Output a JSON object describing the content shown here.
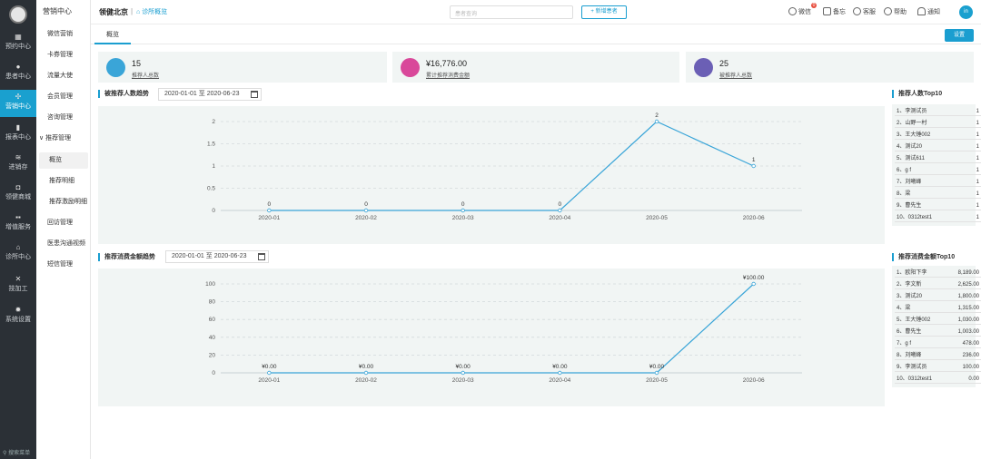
{
  "sidebar": {
    "items": [
      {
        "label": "预约中心",
        "icon": "calendar-icon"
      },
      {
        "label": "患者中心",
        "icon": "user-icon"
      },
      {
        "label": "营销中心",
        "icon": "marketing-icon"
      },
      {
        "label": "报表中心",
        "icon": "bar-chart-icon"
      },
      {
        "label": "进销存",
        "icon": "layers-icon"
      },
      {
        "label": "领健商城",
        "icon": "shop-icon"
      },
      {
        "label": "增值服务",
        "icon": "grid-icon"
      },
      {
        "label": "诊所中心",
        "icon": "clinic-icon"
      },
      {
        "label": "技加工",
        "icon": "tools-icon"
      },
      {
        "label": "系统设置",
        "icon": "gear-icon"
      }
    ],
    "search_label": "搜索菜单"
  },
  "subnav": {
    "header": "营销中心",
    "items": [
      "微信营销",
      "卡券管理",
      "流量大使",
      "会员管理",
      "咨询管理",
      "推荐管理",
      "概览",
      "推荐明细",
      "推荐激励明细",
      "回访管理",
      "医患沟通视频",
      "短信管理"
    ]
  },
  "topbar": {
    "brand": "领健北京",
    "sep": "|",
    "clinic_link": "诊所概览",
    "search_placeholder": "患者查询",
    "new_patient": "新增患者",
    "wechat": "微信",
    "wechat_badge": "0",
    "memo": "备忘",
    "service": "客服",
    "help": "帮助",
    "notify": "通知",
    "avatar": "in"
  },
  "tabs": {
    "overview": "概览",
    "settings": "设置"
  },
  "cards": [
    {
      "value": "15",
      "label": "推荐人总数",
      "color": "#3aa5d8"
    },
    {
      "value": "¥16,776.00",
      "label": "累计推荐消费金额",
      "color": "#d9489a"
    },
    {
      "value": "25",
      "label": "被推荐人总数",
      "color": "#6b5fb5"
    }
  ],
  "chart1": {
    "title": "被推荐人数趋势",
    "date_range": "2020-01-01 至 2020-06-23"
  },
  "chart2": {
    "title": "推荐消费金额趋势",
    "date_range": "2020-01-01 至 2020-06-23"
  },
  "rank1": {
    "title": "推荐人数Top10",
    "rows": [
      {
        "name": "1、李测试员",
        "value": "1"
      },
      {
        "name": "2、山野一村",
        "value": "1"
      },
      {
        "name": "3、王大锤002",
        "value": "1"
      },
      {
        "name": "4、测试20",
        "value": "1"
      },
      {
        "name": "5、测试611",
        "value": "1"
      },
      {
        "name": "6、g f",
        "value": "1"
      },
      {
        "name": "7、刘曦峰",
        "value": "1"
      },
      {
        "name": "8、梁",
        "value": "1"
      },
      {
        "name": "9、曹先生",
        "value": "1"
      },
      {
        "name": "10、0312test1",
        "value": "1"
      }
    ]
  },
  "rank2": {
    "title": "推荐消费金额Top10",
    "rows": [
      {
        "name": "1、欧阳下李",
        "value": "8,189.00"
      },
      {
        "name": "2、李文新",
        "value": "2,625.00"
      },
      {
        "name": "3、测试20",
        "value": "1,800.00"
      },
      {
        "name": "4、梁",
        "value": "1,315.00"
      },
      {
        "name": "5、王大锤002",
        "value": "1,030.00"
      },
      {
        "name": "6、曹先生",
        "value": "1,003.00"
      },
      {
        "name": "7、g f",
        "value": "478.00"
      },
      {
        "name": "8、刘曦峰",
        "value": "236.00"
      },
      {
        "name": "9、李测试员",
        "value": "100.00"
      },
      {
        "name": "10、0312test1",
        "value": "0.00"
      }
    ]
  },
  "chart_data": [
    {
      "type": "line",
      "categories": [
        "2020-01",
        "2020-02",
        "2020-03",
        "2020-04",
        "2020-05",
        "2020-06"
      ],
      "values": [
        0,
        0,
        0,
        0,
        2,
        1
      ],
      "data_labels": [
        "0",
        "0",
        "0",
        "0",
        "2",
        "1"
      ],
      "yticks": [
        "0",
        "0.5",
        "1",
        "1.5",
        "2"
      ],
      "ylim": [
        0,
        2
      ],
      "grid": true,
      "color": "#3aa5d8"
    },
    {
      "type": "line",
      "categories": [
        "2020-01",
        "2020-02",
        "2020-03",
        "2020-04",
        "2020-05",
        "2020-06"
      ],
      "values": [
        0,
        0,
        0,
        0,
        0,
        100
      ],
      "data_labels": [
        "¥0.00",
        "¥0.00",
        "¥0.00",
        "¥0.00",
        "¥0.00",
        "¥100.00"
      ],
      "yticks": [
        "0",
        "20",
        "40",
        "60",
        "80",
        "100"
      ],
      "ylim": [
        0,
        100
      ],
      "grid": true,
      "color": "#3aa5d8"
    }
  ]
}
